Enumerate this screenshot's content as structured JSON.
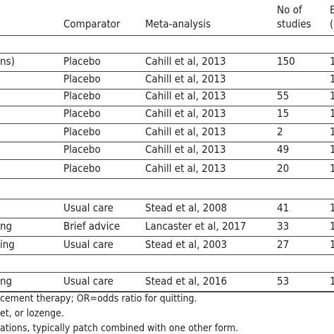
{
  "header": {
    "comparator": "Comparator",
    "meta_analysis": "Meta-analysis",
    "studies_line1": "No of",
    "studies_line2": "studies",
    "right_line1": "E",
    "right_line2": "("
  },
  "table": {
    "rows": [
      [
        "ns)",
        "Placebo",
        "Cahill et al, 2013",
        "150",
        "1"
      ],
      [
        null,
        "Placebo",
        "Cahill et al, 2013",
        null,
        "1"
      ],
      [
        null,
        "Placebo",
        "Cahill et al, 2013",
        "55",
        "1"
      ],
      [
        null,
        "Placebo",
        "Cahill et al, 2013",
        "15",
        "1"
      ],
      [
        null,
        "Placebo",
        "Cahill et al, 2013",
        "2",
        "1"
      ],
      [
        null,
        "Placebo",
        "Cahill et al, 2013",
        "49",
        "1"
      ],
      [
        null,
        "Placebo",
        "Cahill et al, 2013",
        "20",
        "1"
      ],
      [
        null,
        "Usual care",
        "Stead et al, 2008",
        "41",
        "1"
      ],
      [
        "ng",
        "Brief advice",
        "Lancaster et al, 2017",
        "33",
        "1"
      ],
      [
        "ing",
        "Usual care",
        "Stead et al, 2003",
        "27",
        "1"
      ],
      [
        "ng",
        "Usual care",
        "Stead et al, 2016",
        "53",
        "1"
      ]
    ]
  },
  "footnotes": [
    "cement therapy; OR=odds ratio for quitting.",
    "et, or lozenge.",
    "ations, typically patch combined with one other form."
  ]
}
